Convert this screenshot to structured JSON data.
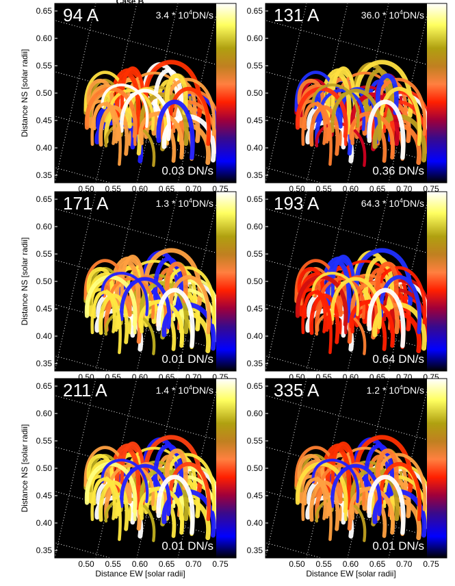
{
  "title": "Case B",
  "y_label": "Distance NS [solar radii]",
  "x_label": "Distance EW [solar radii]",
  "y_ticks": [
    "0.65",
    "0.60",
    "0.55",
    "0.50",
    "0.45",
    "0.40",
    "0.35"
  ],
  "x_ticks": [
    "0.50",
    "0.55",
    "0.60",
    "0.65",
    "0.70",
    "0.75"
  ],
  "panels": [
    {
      "wavelength": "94 A",
      "max": {
        "prefix": "3.4 * 10",
        "exponent": "4",
        "unit": "DN/s"
      },
      "min": "0.03 DN/s"
    },
    {
      "wavelength": "131 A",
      "max": {
        "prefix": "36.0 * 10",
        "exponent": "4",
        "unit": "DN/s"
      },
      "min": "0.36 DN/s"
    },
    {
      "wavelength": "171 A",
      "max": {
        "prefix": "1.3 * 10",
        "exponent": "4",
        "unit": "DN/s"
      },
      "min": "0.01 DN/s"
    },
    {
      "wavelength": "193 A",
      "max": {
        "prefix": "64.3 * 10",
        "exponent": "4",
        "unit": "DN/s"
      },
      "min": "0.64 DN/s"
    },
    {
      "wavelength": "211 A",
      "max": {
        "prefix": "1.4 * 10",
        "exponent": "4",
        "unit": "DN/s"
      },
      "min": "0.01 DN/s"
    },
    {
      "wavelength": "335 A",
      "max": {
        "prefix": "1.2 * 10",
        "exponent": "4",
        "unit": "DN/s"
      },
      "min": "0.01 DN/s"
    }
  ]
}
